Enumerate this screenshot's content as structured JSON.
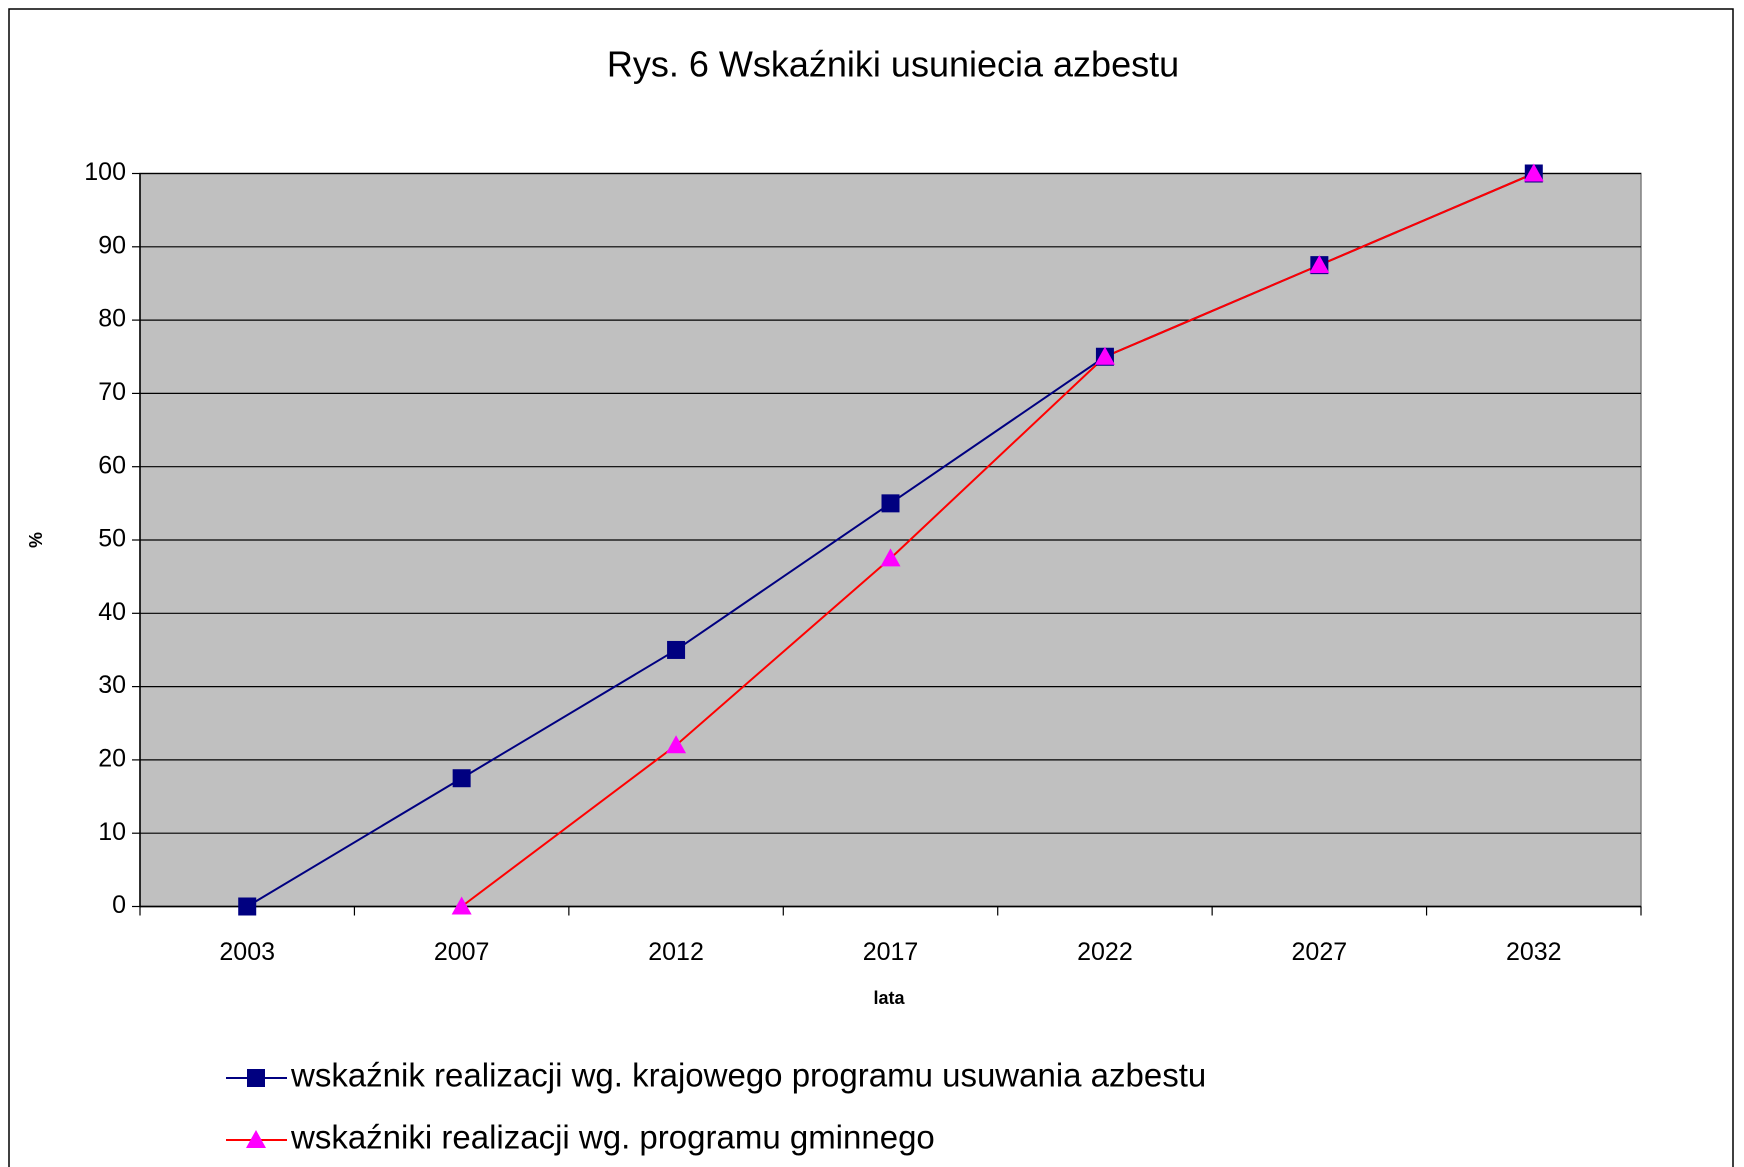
{
  "chart_data": {
    "type": "line",
    "title": "Rys. 6 Wskaźniki usuniecia azbestu",
    "xlabel": "lata",
    "ylabel": "%",
    "categories": [
      "2003",
      "2007",
      "2012",
      "2017",
      "2022",
      "2027",
      "2032"
    ],
    "series": [
      {
        "name": "wskaźnik realizacji wg. krajowego programu usuwania azbestu",
        "color": "#000080",
        "marker": "square",
        "marker_color": "#000080",
        "values": [
          0,
          17.5,
          35,
          55,
          75,
          87.5,
          100
        ]
      },
      {
        "name": "wskaźniki realizacji wg. programu gminnego",
        "color": "#ff0000",
        "marker": "triangle",
        "marker_color": "#ff00ff",
        "values": [
          null,
          0,
          22,
          47.5,
          75,
          87.5,
          100
        ]
      }
    ],
    "ylim": [
      0,
      100
    ],
    "yticks": [
      0,
      10,
      20,
      30,
      40,
      50,
      60,
      70,
      80,
      90,
      100
    ],
    "grid": true,
    "plot_background": "#c0c0c0",
    "legend": "bottom"
  }
}
